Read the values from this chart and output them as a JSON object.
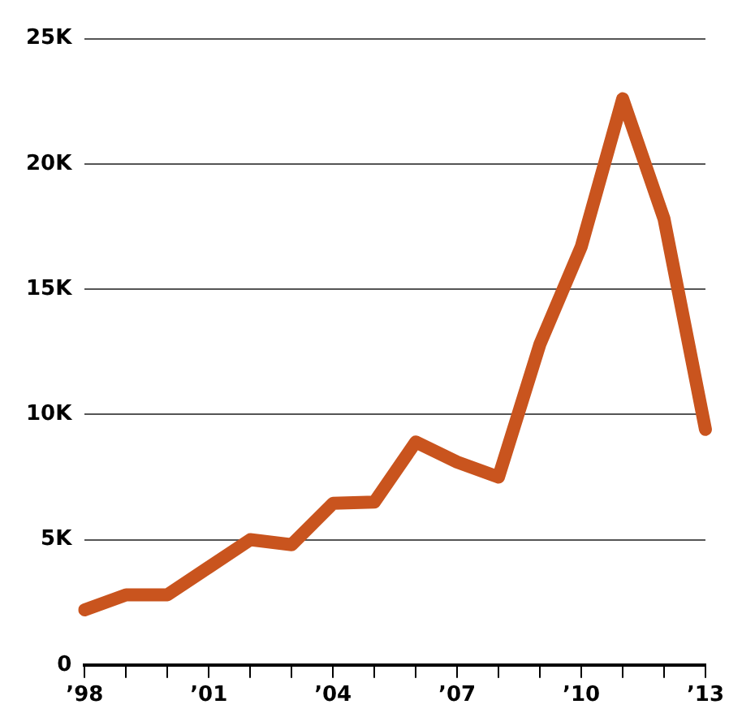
{
  "chart_data": {
    "type": "line",
    "categories": [
      "’98",
      null,
      null,
      "’01",
      null,
      null,
      "’04",
      null,
      null,
      "’07",
      null,
      null,
      "’10",
      null,
      null,
      "’13"
    ],
    "series": [
      {
        "color": "#c9541e",
        "values": [
          2200,
          2800,
          2800,
          3900,
          5000,
          4800,
          6450,
          6500,
          8900,
          8100,
          7500,
          12800,
          16700,
          22600,
          17800,
          9400
        ]
      }
    ],
    "ylim": [
      0,
      25000
    ],
    "yticks": [
      0,
      {
        "value": 5000,
        "label": "5K"
      },
      {
        "value": 10000,
        "label": "10K"
      },
      {
        "value": 15000,
        "label": "15K"
      },
      {
        "value": 20000,
        "label": "20K"
      },
      {
        "value": 25000,
        "label": "25K"
      }
    ],
    "grid": "y",
    "legend": false,
    "marker": "none",
    "line_style": "solid"
  }
}
